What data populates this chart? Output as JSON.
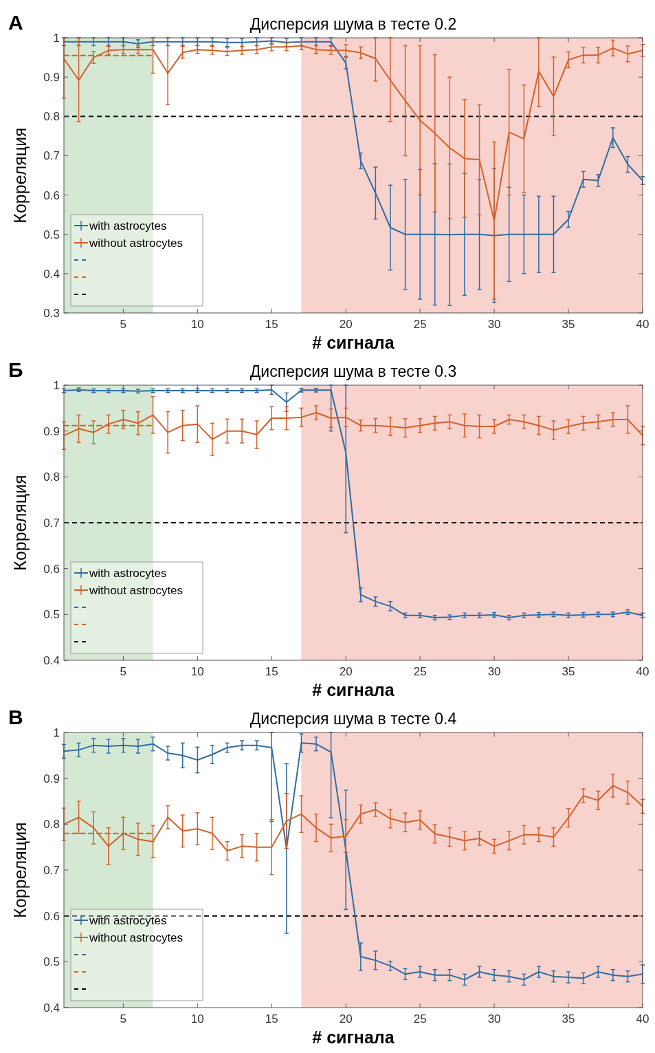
{
  "chart_data": [
    {
      "type": "line",
      "title": "Дисперсия шума в тесте 0.2",
      "xlabel": "# сигнала",
      "ylabel": "Корреляция",
      "annotations": [
        "А"
      ],
      "x": [
        1,
        2,
        3,
        4,
        5,
        6,
        7,
        8,
        9,
        10,
        11,
        12,
        13,
        14,
        15,
        16,
        17,
        18,
        19,
        20,
        21,
        22,
        23,
        24,
        25,
        26,
        27,
        28,
        29,
        30,
        31,
        32,
        33,
        34,
        35,
        36,
        37,
        38,
        39,
        40
      ],
      "xlim": [
        1,
        40
      ],
      "ylim": [
        0.3,
        1
      ],
      "xticks": [
        5,
        10,
        15,
        20,
        25,
        30,
        35,
        40
      ],
      "yticks": [
        0.3,
        0.4,
        0.5,
        0.6,
        0.7,
        0.8,
        0.9,
        1
      ],
      "legend": "bottom left",
      "bands": [
        {
          "axis": "x",
          "from": 1,
          "to": 7,
          "color": "#d4e8d3"
        },
        {
          "axis": "x",
          "from": 17,
          "to": 40,
          "color": "#f8d2cd"
        }
      ],
      "ref_lines": [
        {
          "axis": "y",
          "value": 0.8,
          "color": "#000000",
          "line_style": "dashed"
        }
      ],
      "series": [
        {
          "name": "with astrocytes",
          "color": "#2f6ca3",
          "values": [
            0.99,
            0.99,
            0.99,
            0.99,
            0.99,
            0.985,
            0.99,
            0.99,
            0.99,
            0.99,
            0.99,
            0.988,
            0.988,
            0.99,
            0.992,
            0.988,
            0.99,
            0.99,
            0.99,
            0.936,
            0.687,
            0.605,
            0.517,
            0.5,
            0.5,
            0.5,
            0.499,
            0.5,
            0.5,
            0.497,
            0.5,
            0.5,
            0.5,
            0.5,
            0.538,
            0.64,
            0.637,
            0.746,
            0.678,
            0.637
          ],
          "errors": [
            0.01,
            0.01,
            0.01,
            0.01,
            0.01,
            0.01,
            0.01,
            0.01,
            0.01,
            0.01,
            0.01,
            0.01,
            0.01,
            0.01,
            0.008,
            0.01,
            0.01,
            0.01,
            0.01,
            0.015,
            0.02,
            0.066,
            0.108,
            0.14,
            0.165,
            0.18,
            0.18,
            0.155,
            0.14,
            0.17,
            0.12,
            0.1,
            0.097,
            0.097,
            0.02,
            0.02,
            0.015,
            0.025,
            0.02,
            0.01
          ]
        },
        {
          "name": "without astrocytes",
          "color": "#d4602b",
          "values": [
            0.947,
            0.892,
            0.95,
            0.968,
            0.97,
            0.97,
            0.97,
            0.91,
            0.963,
            0.97,
            0.968,
            0.965,
            0.968,
            0.97,
            0.977,
            0.977,
            0.98,
            0.97,
            0.968,
            0.968,
            0.962,
            0.947,
            0.892,
            0.84,
            0.79,
            0.757,
            0.72,
            0.693,
            0.69,
            0.535,
            0.76,
            0.743,
            0.915,
            0.851,
            0.944,
            0.956,
            0.956,
            0.974,
            0.959,
            0.968
          ],
          "errors": [
            [
              0.846,
              1
            ],
            [
              0.787,
              1
            ],
            0.015,
            0.01,
            0.01,
            0.01,
            [
              0.91,
              1
            ],
            [
              0.83,
              1
            ],
            0.015,
            0.01,
            0.01,
            0.01,
            0.01,
            0.01,
            0.01,
            0.01,
            0.01,
            0.01,
            0.01,
            0.015,
            0.015,
            [
              0.89,
              1
            ],
            [
              0.787,
              1
            ],
            0.14,
            0.19,
            0.2,
            0.18,
            0.15,
            0.14,
            0.2,
            0.16,
            0.137,
            [
              0.825,
              1
            ],
            0.1,
            0.02,
            0.02,
            0.02,
            0.02,
            0.02,
            0.015
          ]
        },
        {
          "type": "line",
          "line_style": "dashed",
          "color": "#d4602b",
          "values": [
            0.955,
            0.955,
            0.955,
            0.955,
            0.955,
            0.955,
            0.955,
            null,
            null,
            null,
            null,
            null,
            null,
            null,
            null,
            null,
            null,
            null,
            null,
            null,
            null,
            null,
            null,
            null,
            null,
            null,
            null,
            null,
            null,
            null,
            null,
            null,
            null,
            null,
            null,
            null,
            null,
            null,
            null,
            null
          ]
        }
      ]
    },
    {
      "type": "line",
      "title": "Дисперсия шума в тесте 0.3",
      "xlabel": "# сигнала",
      "ylabel": "Корреляция",
      "annotations": [
        "Б"
      ],
      "x": [
        1,
        2,
        3,
        4,
        5,
        6,
        7,
        8,
        9,
        10,
        11,
        12,
        13,
        14,
        15,
        16,
        17,
        18,
        19,
        20,
        21,
        22,
        23,
        24,
        25,
        26,
        27,
        28,
        29,
        30,
        31,
        32,
        33,
        34,
        35,
        36,
        37,
        38,
        39,
        40
      ],
      "xlim": [
        1,
        40
      ],
      "ylim": [
        0.4,
        1
      ],
      "xticks": [
        5,
        10,
        15,
        20,
        25,
        30,
        35,
        40
      ],
      "yticks": [
        0.4,
        0.5,
        0.6,
        0.7,
        0.8,
        0.9,
        1
      ],
      "legend": "bottom left",
      "bands": [
        {
          "axis": "x",
          "from": 1,
          "to": 7,
          "color": "#d4e8d3"
        },
        {
          "axis": "x",
          "from": 17,
          "to": 40,
          "color": "#f8d2cd"
        }
      ],
      "ref_lines": [
        {
          "axis": "y",
          "value": 0.7,
          "color": "#000000",
          "line_style": "dashed"
        }
      ],
      "series": [
        {
          "name": "with astrocytes",
          "color": "#2f6ca3",
          "values": [
            0.988,
            0.99,
            0.988,
            0.988,
            0.988,
            0.987,
            0.988,
            0.988,
            0.988,
            0.988,
            0.988,
            0.988,
            0.988,
            0.988,
            0.99,
            0.963,
            0.989,
            0.989,
            0.989,
            0.853,
            0.543,
            0.528,
            0.518,
            0.498,
            0.498,
            0.493,
            0.494,
            0.498,
            0.498,
            0.499,
            0.493,
            0.498,
            0.499,
            0.5,
            0.498,
            0.499,
            0.5,
            0.5,
            0.505,
            0.498
          ],
          "errors": [
            0.004,
            0.004,
            0.004,
            0.004,
            0.004,
            0.004,
            0.004,
            0.004,
            0.004,
            0.004,
            0.004,
            0.004,
            0.004,
            0.004,
            0.01,
            0.02,
            0.004,
            0.004,
            [
              0.9,
              1
            ],
            [
              0.678,
              1
            ],
            0.015,
            0.01,
            0.01,
            0.005,
            0.005,
            0.005,
            0.005,
            0.005,
            0.005,
            0.005,
            0.005,
            0.005,
            0.005,
            0.005,
            0.005,
            0.005,
            0.005,
            0.005,
            0.005,
            0.005
          ]
        },
        {
          "name": "without astrocytes",
          "color": "#d4602b",
          "values": [
            0.89,
            0.905,
            0.897,
            0.915,
            0.925,
            0.917,
            0.935,
            0.897,
            0.912,
            0.915,
            0.882,
            0.9,
            0.9,
            0.892,
            0.928,
            0.928,
            0.93,
            0.94,
            0.928,
            0.93,
            0.912,
            0.912,
            0.91,
            0.907,
            0.912,
            0.917,
            0.92,
            0.912,
            0.91,
            0.91,
            0.925,
            0.92,
            0.912,
            0.902,
            0.91,
            0.917,
            0.92,
            0.925,
            0.925,
            0.89
          ],
          "errors": [
            0.03,
            0.03,
            0.025,
            0.02,
            0.02,
            0.025,
            0.04,
            0.045,
            0.033,
            0.04,
            0.035,
            0.026,
            0.026,
            0.03,
            0.025,
            0.025,
            0.02,
            0.015,
            0.02,
            0.02,
            0.012,
            0.015,
            0.02,
            0.02,
            0.015,
            0.015,
            0.015,
            0.025,
            0.025,
            0.015,
            0.01,
            0.015,
            0.02,
            0.02,
            0.015,
            0.015,
            0.015,
            0.015,
            0.03,
            0.02
          ]
        },
        {
          "type": "line",
          "line_style": "dashed",
          "color": "#d4602b",
          "values": [
            0.912,
            0.912,
            0.912,
            0.912,
            0.912,
            0.912,
            0.912,
            null,
            null,
            null,
            null,
            null,
            null,
            null,
            null,
            null,
            null,
            null,
            null,
            null,
            null,
            null,
            null,
            null,
            null,
            null,
            null,
            null,
            null,
            null,
            null,
            null,
            null,
            null,
            null,
            null,
            null,
            null,
            null,
            null
          ]
        }
      ]
    },
    {
      "type": "line",
      "title": "Дисперсия шума в тесте 0.4",
      "xlabel": "# сигнала",
      "ylabel": "Корреляция",
      "annotations": [
        "В"
      ],
      "x": [
        1,
        2,
        3,
        4,
        5,
        6,
        7,
        8,
        9,
        10,
        11,
        12,
        13,
        14,
        15,
        16,
        17,
        18,
        19,
        20,
        21,
        22,
        23,
        24,
        25,
        26,
        27,
        28,
        29,
        30,
        31,
        32,
        33,
        34,
        35,
        36,
        37,
        38,
        39,
        40
      ],
      "xlim": [
        1,
        40
      ],
      "ylim": [
        0.4,
        1
      ],
      "xticks": [
        5,
        10,
        15,
        20,
        25,
        30,
        35,
        40
      ],
      "yticks": [
        0.4,
        0.5,
        0.6,
        0.7,
        0.8,
        0.9,
        1
      ],
      "legend": "bottom left",
      "bands": [
        {
          "axis": "x",
          "from": 1,
          "to": 7,
          "color": "#d4e8d3"
        },
        {
          "axis": "x",
          "from": 17,
          "to": 40,
          "color": "#f8d2cd"
        }
      ],
      "ref_lines": [
        {
          "axis": "y",
          "value": 0.6,
          "color": "#000000",
          "line_style": "dashed"
        }
      ],
      "series": [
        {
          "name": "with astrocytes",
          "color": "#2f6ca3",
          "values": [
            0.959,
            0.962,
            0.972,
            0.97,
            0.972,
            0.97,
            0.975,
            0.955,
            0.95,
            0.94,
            0.952,
            0.967,
            0.972,
            0.972,
            0.967,
            0.747,
            0.977,
            0.975,
            0.957,
            0.744,
            0.511,
            0.503,
            0.491,
            0.473,
            0.478,
            0.471,
            0.471,
            0.461,
            0.478,
            0.471,
            0.468,
            0.461,
            0.478,
            0.468,
            0.466,
            0.464,
            0.478,
            0.471,
            0.468,
            0.473
          ],
          "errors": [
            0.015,
            0.015,
            0.015,
            0.015,
            0.015,
            0.015,
            0.015,
            0.015,
            0.027,
            0.028,
            0.02,
            0.01,
            0.01,
            0.01,
            [
              0.806,
              1
            ],
            0.185,
            0.02,
            0.015,
            [
              0.814,
              1
            ],
            0.13,
            0.03,
            0.02,
            0.01,
            0.012,
            0.012,
            0.012,
            0.012,
            0.012,
            0.012,
            0.012,
            0.012,
            0.012,
            0.012,
            0.012,
            0.012,
            0.012,
            0.012,
            0.012,
            0.012,
            0.02
          ]
        },
        {
          "name": "without astrocytes",
          "color": "#d4602b",
          "values": [
            0.8,
            0.815,
            0.792,
            0.752,
            0.78,
            0.767,
            0.762,
            0.815,
            0.785,
            0.79,
            0.78,
            0.742,
            0.752,
            0.75,
            0.75,
            0.807,
            0.822,
            0.792,
            0.77,
            0.774,
            0.822,
            0.832,
            0.812,
            0.804,
            0.809,
            0.779,
            0.772,
            0.764,
            0.769,
            0.752,
            0.764,
            0.777,
            0.777,
            0.772,
            0.814,
            0.862,
            0.852,
            0.884,
            0.869,
            0.839
          ],
          "errors": [
            0.035,
            0.035,
            0.035,
            0.04,
            0.035,
            0.035,
            0.035,
            0.025,
            0.035,
            0.035,
            0.035,
            0.02,
            0.025,
            0.03,
            0.06,
            0.06,
            0.04,
            0.03,
            0.03,
            0.036,
            0.02,
            0.015,
            0.02,
            0.02,
            0.02,
            0.02,
            0.02,
            0.02,
            0.015,
            0.015,
            0.02,
            0.02,
            0.015,
            0.02,
            0.02,
            0.015,
            0.02,
            0.025,
            0.025,
            0.015
          ]
        },
        {
          "type": "line",
          "line_style": "dashed",
          "color": "#d4602b",
          "values": [
            0.78,
            0.78,
            0.78,
            0.78,
            0.78,
            0.78,
            0.78,
            null,
            null,
            null,
            null,
            null,
            null,
            null,
            null,
            null,
            null,
            null,
            null,
            null,
            null,
            null,
            null,
            null,
            null,
            null,
            null,
            null,
            null,
            null,
            null,
            null,
            null,
            null,
            null,
            null,
            null,
            null,
            null,
            null
          ]
        }
      ]
    }
  ]
}
